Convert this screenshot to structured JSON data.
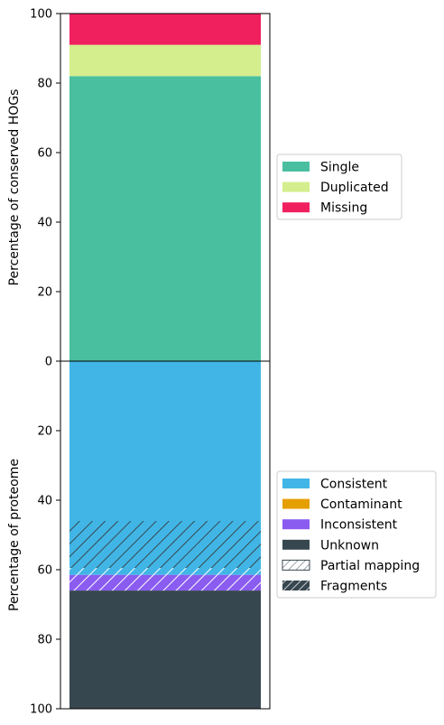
{
  "chart_data": [
    {
      "type": "bar",
      "stacked": true,
      "ylabel": "Percentage of conserved HOGs",
      "ylim": [
        0,
        100
      ],
      "yticks": [
        0,
        20,
        40,
        60,
        80,
        100
      ],
      "legend_position": "right",
      "series": [
        {
          "name": "Single",
          "value": 82.0,
          "color": "#4ABFA0"
        },
        {
          "name": "Duplicated",
          "value": 9.0,
          "color": "#D4EE8E"
        },
        {
          "name": "Missing",
          "value": 9.0,
          "color": "#F0205F"
        }
      ]
    },
    {
      "type": "bar",
      "stacked": true,
      "inverted_y": true,
      "ylabel": "Percentage of proteome",
      "ylim": [
        0,
        100
      ],
      "yticks": [
        0,
        20,
        40,
        60,
        80,
        100
      ],
      "legend_position": "right",
      "series": [
        {
          "name": "Consistent",
          "value": 61.5,
          "color": "#41B6E6"
        },
        {
          "name": "Contaminant",
          "value": 0.0,
          "color": "#E69F00"
        },
        {
          "name": "Inconsistent",
          "value": 4.5,
          "color": "#8B5CF0"
        },
        {
          "name": "Unknown",
          "value": 34.0,
          "color": "#37474F"
        }
      ],
      "hatch_overlays": [
        {
          "name": "Partial mapping",
          "start": 59.5,
          "end": 66.0,
          "color": "#ffffff"
        },
        {
          "name": "Fragments",
          "start": 46.0,
          "end": 59.5,
          "color": "#37474F"
        }
      ],
      "legend": [
        "Consistent",
        "Contaminant",
        "Inconsistent",
        "Unknown",
        "Partial mapping",
        "Fragments"
      ]
    }
  ]
}
